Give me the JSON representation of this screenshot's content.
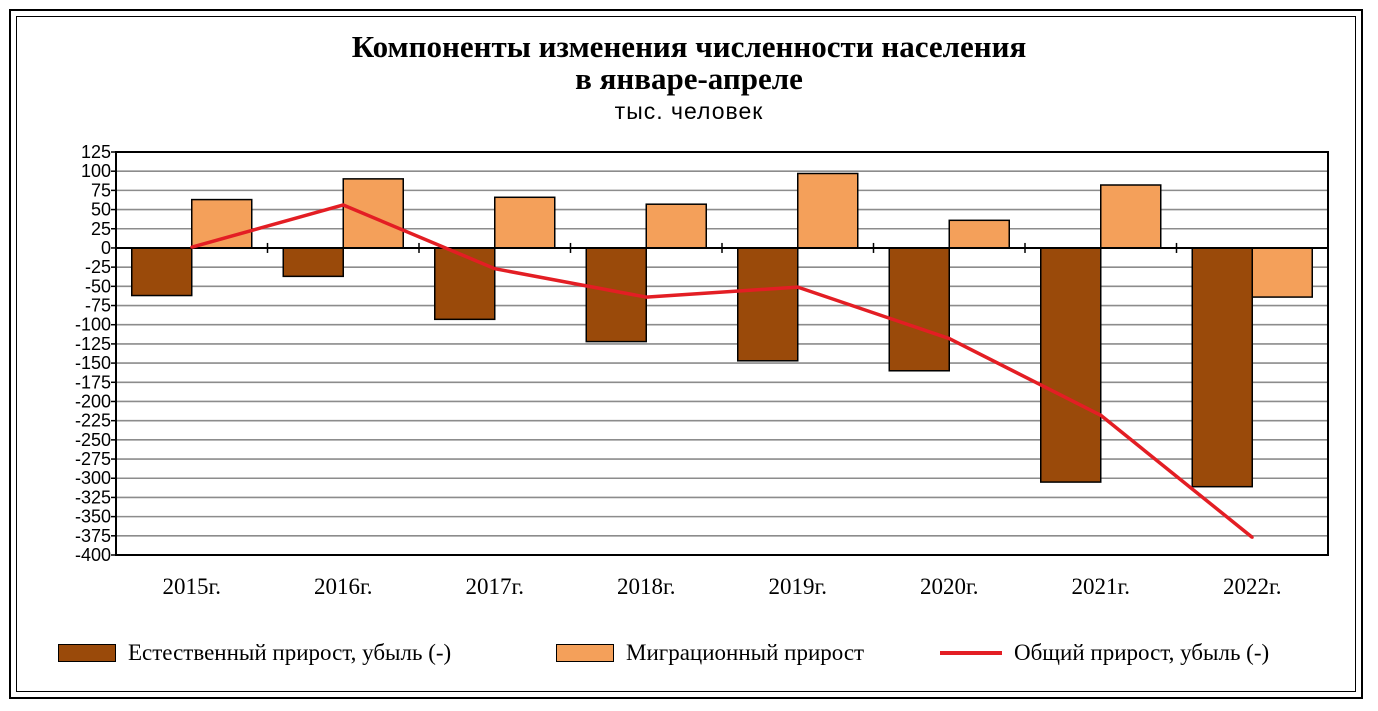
{
  "title_line1": "Компоненты изменения численности населения",
  "title_line2": "в январе-апреле",
  "subtitle": "тыс. человек",
  "colors": {
    "natural": "#9A4A0A",
    "migration": "#F4A05A",
    "total": "#E31E24",
    "grid": "#8C8C8C"
  },
  "chart_data": {
    "type": "bar",
    "categories": [
      "2015г.",
      "2016г.",
      "2017г.",
      "2018г.",
      "2019г.",
      "2020г.",
      "2021г.",
      "2022г."
    ],
    "series": [
      {
        "name": "Естественный прирост, убыль (-)",
        "kind": "bar",
        "values": [
          -62,
          -37,
          -93,
          -122,
          -147,
          -160,
          -305,
          -311
        ]
      },
      {
        "name": "Миграционный прирост",
        "kind": "bar",
        "values": [
          63,
          90,
          66,
          57,
          97,
          36,
          82,
          -64
        ]
      },
      {
        "name": "Общий прирост, убыль (-)",
        "kind": "line",
        "values": [
          1,
          56,
          -27,
          -64,
          -51,
          -118,
          -218,
          -377
        ]
      }
    ],
    "ylim": [
      -400,
      125
    ],
    "ytick_step": 25,
    "grid": true,
    "legend_position": "bottom"
  },
  "legend": [
    {
      "label": "Естественный прирост, убыль (-)",
      "type": "bar",
      "color": "#9A4A0A"
    },
    {
      "label": "Миграционный прирост",
      "type": "bar",
      "color": "#F4A05A"
    },
    {
      "label": "Общий прирост, убыль (-)",
      "type": "line",
      "color": "#E31E24"
    }
  ]
}
